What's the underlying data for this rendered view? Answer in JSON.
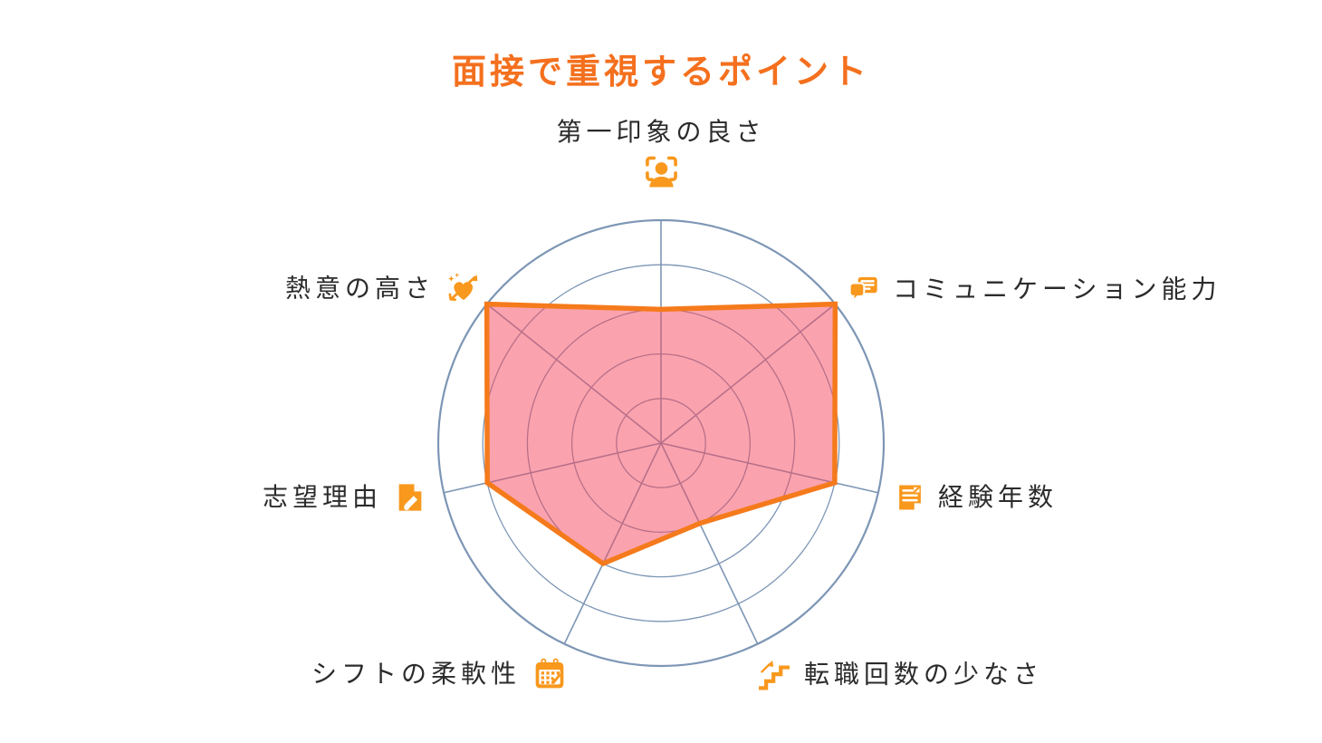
{
  "title": "面接で重視するポイント",
  "colors": {
    "accent": "#f4701e",
    "icon_orange": "#f8981d",
    "label_text": "#2b2b2b",
    "grid": "#7d96b5",
    "polygon_stroke": "#f57a1c",
    "polygon_fill": "#f5475d",
    "polygon_fill_opacity": 0.5
  },
  "chart_data": {
    "type": "radar",
    "title": "面接で重視するポイント",
    "grid_shape": "circle",
    "legend": "none",
    "scale": {
      "min": 0,
      "max": 5,
      "rings": 5
    },
    "axes": [
      {
        "label": "第一印象の良さ",
        "icon": "face-scan-icon",
        "value": 3
      },
      {
        "label": "コミュニケーション能力",
        "icon": "chat-bubbles-icon",
        "value": 5
      },
      {
        "label": "経験年数",
        "icon": "document-lines-icon",
        "value": 4
      },
      {
        "label": "転職回数の少なさ",
        "icon": "stairs-up-arrow-icon",
        "value": 2
      },
      {
        "label": "シフトの柔軟性",
        "icon": "calendar-check-icon",
        "value": 3
      },
      {
        "label": "志望理由",
        "icon": "note-pencil-icon",
        "value": 4
      },
      {
        "label": "熱意の高さ",
        "icon": "heart-arrow-icon",
        "value": 5
      }
    ]
  }
}
